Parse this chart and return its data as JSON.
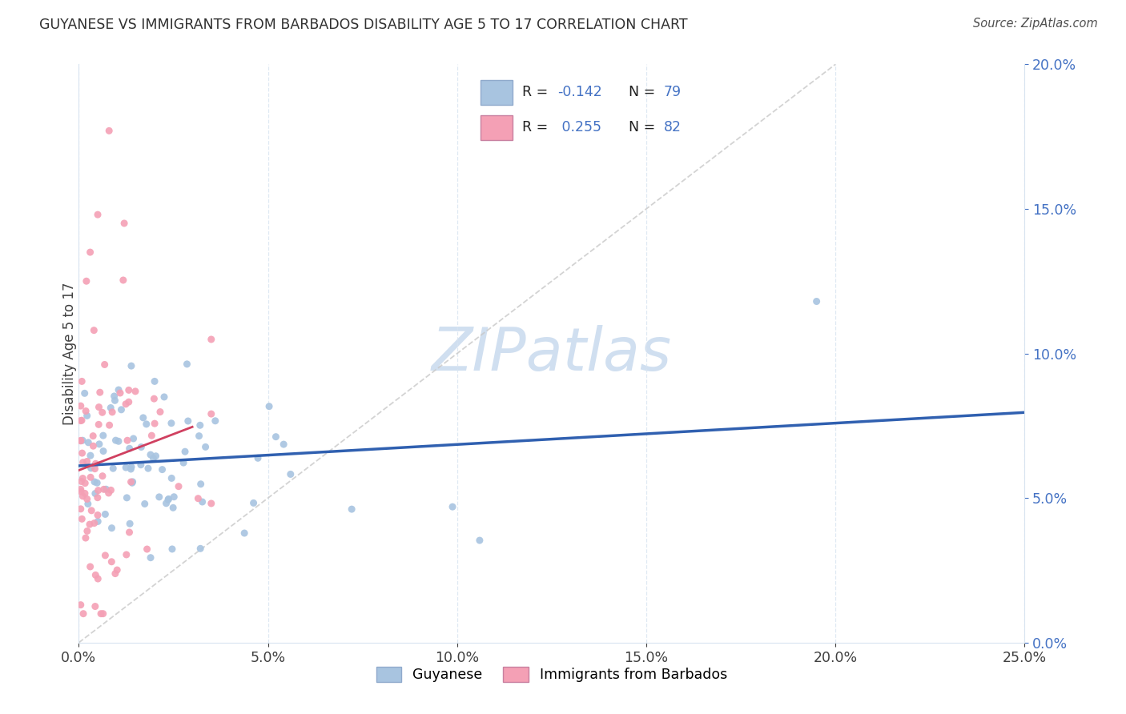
{
  "title": "GUYANESE VS IMMIGRANTS FROM BARBADOS DISABILITY AGE 5 TO 17 CORRELATION CHART",
  "source": "Source: ZipAtlas.com",
  "ylabel": "Disability Age 5 to 17",
  "x_min": 0.0,
  "x_max": 0.25,
  "y_min": 0.0,
  "y_max": 0.2,
  "guyanese_color": "#a8c4e0",
  "barbados_color": "#f4a0b5",
  "guyanese_line_color": "#3060b0",
  "barbados_line_color": "#d04060",
  "diagonal_line_color": "#c8c8c8",
  "watermark_color": "#d0dff0",
  "legend_label_blue": "Guyanese",
  "legend_label_pink": "Immigrants from Barbados",
  "r_blue": -0.142,
  "r_pink": 0.255,
  "n_blue": 79,
  "n_pink": 82
}
